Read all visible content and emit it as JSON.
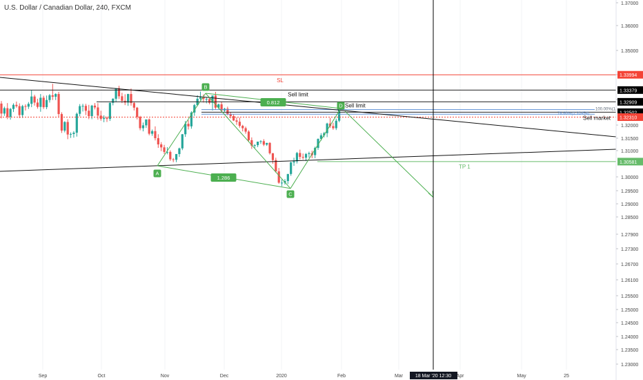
{
  "chart_title": "U.S. Dollar / Canadian Dollar, 240, FXCM",
  "colors": {
    "up": "#26a69a",
    "down": "#ef5350",
    "pattern": "#4caf50",
    "sl_line": "#f44336",
    "price_label": "#000000",
    "tp_line": "#66bb6a",
    "fib_line": "#5b8fd6",
    "crosshair": "#000000",
    "trend": "#111111"
  },
  "chart_data": {
    "type": "candlestick",
    "title": "U.S. Dollar / Canadian Dollar, 240, FXCM",
    "x_ticks": [
      "Sep",
      "Oct",
      "Nov",
      "Dec",
      "2020",
      "Feb",
      "Mar",
      "Apr",
      "May",
      "25"
    ],
    "crosshair_time_label": "18 Mar '20   12:30",
    "y_ticks": [
      1.37,
      1.36,
      1.35,
      1.34,
      1.33,
      1.32,
      1.315,
      1.31,
      1.3,
      1.295,
      1.29,
      1.285,
      1.279,
      1.273,
      1.267,
      1.261,
      1.255,
      1.25,
      1.245,
      1.24,
      1.235,
      1.23
    ],
    "y_tick_labels": [
      "1.37000",
      "1.36000",
      "1.35000",
      "1.34000",
      "1.33000",
      "1.32000",
      "1.31500",
      "1.31000",
      "1.30000",
      "1.29500",
      "1.29000",
      "1.28500",
      "1.27900",
      "1.27300",
      "1.26700",
      "1.26100",
      "1.25500",
      "1.25000",
      "1.24500",
      "1.24000",
      "1.23500",
      "1.23000"
    ],
    "price_labels": [
      {
        "label": "1.33994",
        "value": 1.33994,
        "kind": "sl"
      },
      {
        "label": "1.33379",
        "value": 1.33379,
        "kind": "black"
      },
      {
        "label": "1.32909",
        "value": 1.32909,
        "kind": "black"
      },
      {
        "label": "1.32502",
        "value": 1.32502,
        "kind": "black"
      },
      {
        "label": "1.32310",
        "value": 1.3231,
        "kind": "red"
      },
      {
        "label": "1.30581",
        "value": 1.30581,
        "kind": "tp"
      }
    ],
    "annotations": {
      "sl": "SL",
      "sell_limit_1": "Sell limit",
      "sell_limit_2": "Sell limit",
      "sell_market": "Sell market",
      "tp": "TP 1",
      "fib_100": "100.00%(1.",
      "fib_786": "78.60%(1.32454)"
    },
    "pattern_points": [
      {
        "label": "A",
        "x": "late Oct",
        "y": 1.3042
      },
      {
        "label": "B",
        "x": "mid Nov",
        "y": 1.3325
      },
      {
        "label": "C",
        "x": "early Jan",
        "y": 1.2958
      },
      {
        "label": "D",
        "x": "early Feb",
        "y": 1.3265
      }
    ],
    "pattern_ratios": [
      "0.812",
      "1.286"
    ],
    "projection_target": 1.2925,
    "candles": {
      "open": [
        1.3284,
        1.3245,
        1.3266,
        1.3232,
        1.3263,
        1.3279,
        1.3274,
        1.3239,
        1.3274,
        1.3272,
        1.3283,
        1.3312,
        1.3288,
        1.3271,
        1.3307,
        1.327,
        1.3298,
        1.3317,
        1.3311,
        1.3322,
        1.3243,
        1.3179,
        1.3212,
        1.3164,
        1.3166,
        1.3171,
        1.3244,
        1.3274,
        1.3275,
        1.3256,
        1.3235,
        1.3276,
        1.3269,
        1.3237,
        1.3224,
        1.3228,
        1.3224,
        1.3287,
        1.3303,
        1.3345,
        1.3313,
        1.3295,
        1.3288,
        1.3322,
        1.3286,
        1.3268,
        1.3232,
        1.3188,
        1.3199,
        1.3222,
        1.3167,
        1.3177,
        1.315,
        1.3125,
        1.3113,
        1.3095,
        1.3095,
        1.3067,
        1.3065,
        1.3087,
        1.3109,
        1.3165,
        1.3205,
        1.3195,
        1.3249,
        1.3278,
        1.3303,
        1.3309,
        1.3302,
        1.3302,
        1.3287,
        1.3316,
        1.3268,
        1.3281,
        1.3257,
        1.3264,
        1.3243,
        1.3235,
        1.3218,
        1.3213,
        1.3197,
        1.3188,
        1.3175,
        1.3142,
        1.312,
        1.3122,
        1.3136,
        1.3138,
        1.3124,
        1.3131,
        1.309,
        1.3064,
        1.3021,
        1.2979,
        1.2979,
        1.2985,
        1.3011,
        1.3055,
        1.3059,
        1.3091,
        1.3076,
        1.3073,
        1.3087,
        1.309,
        1.3083,
        1.3111,
        1.3147,
        1.3161,
        1.3169,
        1.3206,
        1.3196,
        1.3188,
        1.3217,
        1.3264
      ],
      "high": [
        1.3294,
        1.3272,
        1.3286,
        1.3267,
        1.3285,
        1.3292,
        1.3285,
        1.3279,
        1.3281,
        1.329,
        1.3338,
        1.3319,
        1.3303,
        1.3322,
        1.3315,
        1.3316,
        1.3322,
        1.3363,
        1.3325,
        1.3331,
        1.325,
        1.3215,
        1.3223,
        1.3172,
        1.3177,
        1.3249,
        1.3282,
        1.3283,
        1.3283,
        1.3279,
        1.3279,
        1.3286,
        1.3286,
        1.3256,
        1.3238,
        1.3233,
        1.3288,
        1.3305,
        1.3345,
        1.3355,
        1.3327,
        1.3321,
        1.3323,
        1.3344,
        1.3291,
        1.3271,
        1.3236,
        1.321,
        1.322,
        1.3226,
        1.3183,
        1.3195,
        1.3165,
        1.3134,
        1.3123,
        1.3114,
        1.3101,
        1.3072,
        1.3087,
        1.3112,
        1.3166,
        1.3216,
        1.3219,
        1.3254,
        1.3283,
        1.3317,
        1.3332,
        1.332,
        1.3308,
        1.331,
        1.3316,
        1.3331,
        1.3284,
        1.3292,
        1.3267,
        1.3272,
        1.325,
        1.3242,
        1.323,
        1.3229,
        1.3201,
        1.3194,
        1.318,
        1.3153,
        1.3126,
        1.3136,
        1.3142,
        1.3146,
        1.3131,
        1.3134,
        1.3091,
        1.3073,
        1.3034,
        1.2991,
        1.2992,
        1.3011,
        1.3058,
        1.3073,
        1.3095,
        1.3104,
        1.3089,
        1.3091,
        1.3096,
        1.31,
        1.3116,
        1.3149,
        1.3169,
        1.3174,
        1.3209,
        1.3228,
        1.3209,
        1.3225,
        1.3272,
        1.3292
      ],
      "low": [
        1.3226,
        1.3236,
        1.3223,
        1.3221,
        1.3251,
        1.3268,
        1.3227,
        1.3228,
        1.3257,
        1.3263,
        1.327,
        1.3276,
        1.3264,
        1.3252,
        1.3263,
        1.3262,
        1.3288,
        1.3298,
        1.3298,
        1.3233,
        1.317,
        1.3172,
        1.3146,
        1.3151,
        1.3152,
        1.3156,
        1.3234,
        1.3253,
        1.3239,
        1.3223,
        1.3223,
        1.3261,
        1.3221,
        1.3217,
        1.3211,
        1.3212,
        1.3216,
        1.3277,
        1.3289,
        1.3302,
        1.3286,
        1.3278,
        1.3275,
        1.3276,
        1.3257,
        1.3222,
        1.318,
        1.3176,
        1.3189,
        1.3161,
        1.3159,
        1.3141,
        1.3111,
        1.3098,
        1.3087,
        1.3086,
        1.3061,
        1.3056,
        1.3056,
        1.3076,
        1.3102,
        1.3155,
        1.3183,
        1.3186,
        1.3236,
        1.3274,
        1.3297,
        1.3288,
        1.3285,
        1.3281,
        1.3257,
        1.326,
        1.3263,
        1.3251,
        1.3252,
        1.3238,
        1.3226,
        1.3216,
        1.3201,
        1.319,
        1.3176,
        1.3167,
        1.3135,
        1.3107,
        1.3109,
        1.3114,
        1.3127,
        1.3118,
        1.3119,
        1.3085,
        1.305,
        1.3016,
        1.2975,
        1.2966,
        1.2972,
        1.2974,
        1.3004,
        1.3042,
        1.3051,
        1.3066,
        1.3066,
        1.306,
        1.3073,
        1.3071,
        1.3071,
        1.3103,
        1.314,
        1.3153,
        1.3154,
        1.3189,
        1.3182,
        1.3181,
        1.3211,
        1.3259
      ],
      "close": [
        1.3245,
        1.3266,
        1.3232,
        1.3263,
        1.3279,
        1.3274,
        1.3239,
        1.3274,
        1.3272,
        1.3283,
        1.3312,
        1.3288,
        1.3271,
        1.3307,
        1.327,
        1.3298,
        1.3317,
        1.3311,
        1.3322,
        1.3243,
        1.3179,
        1.3212,
        1.3164,
        1.3166,
        1.3171,
        1.3244,
        1.3274,
        1.3275,
        1.3256,
        1.3235,
        1.3276,
        1.3269,
        1.3237,
        1.3224,
        1.3228,
        1.3224,
        1.3287,
        1.3303,
        1.3345,
        1.3313,
        1.3295,
        1.3288,
        1.3322,
        1.3286,
        1.3268,
        1.3232,
        1.3188,
        1.3199,
        1.3222,
        1.3167,
        1.3177,
        1.315,
        1.3125,
        1.3113,
        1.3095,
        1.3095,
        1.3067,
        1.3065,
        1.3087,
        1.3109,
        1.3165,
        1.3205,
        1.3195,
        1.3249,
        1.3278,
        1.3303,
        1.3309,
        1.3302,
        1.3302,
        1.3287,
        1.3316,
        1.3268,
        1.3281,
        1.3257,
        1.3264,
        1.3243,
        1.3235,
        1.3218,
        1.3213,
        1.3197,
        1.3188,
        1.3175,
        1.3142,
        1.312,
        1.3122,
        1.3136,
        1.3138,
        1.3124,
        1.3131,
        1.309,
        1.3064,
        1.3021,
        1.2979,
        1.2979,
        1.2985,
        1.3011,
        1.3055,
        1.3059,
        1.3091,
        1.3076,
        1.3073,
        1.3087,
        1.309,
        1.3083,
        1.3111,
        1.3147,
        1.3161,
        1.3169,
        1.3206,
        1.3196,
        1.3188,
        1.3217,
        1.3264,
        1.3274
      ]
    }
  }
}
